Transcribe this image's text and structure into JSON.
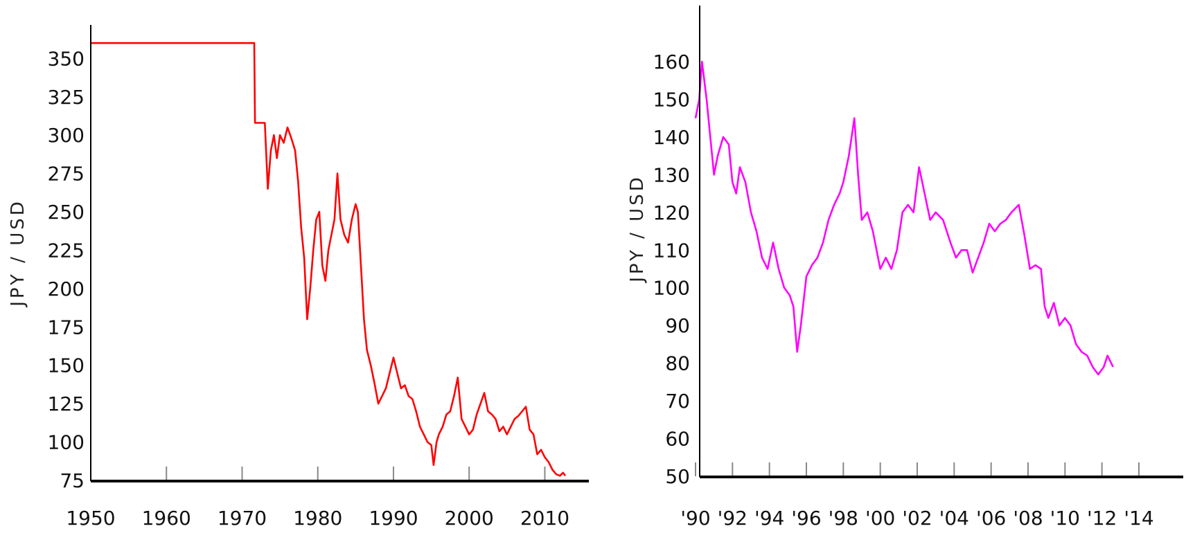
{
  "chart_data": [
    {
      "type": "line",
      "ylabel": "JPY / USD",
      "xlim": [
        1950,
        2016
      ],
      "ylim": [
        75,
        370
      ],
      "x_ticks": [
        1950,
        1960,
        1970,
        1980,
        1990,
        2000,
        2010
      ],
      "x_tick_labels": [
        "1950",
        "1960",
        "1970",
        "1980",
        "1990",
        "2000",
        "2010"
      ],
      "y_ticks": [
        75,
        100,
        125,
        150,
        175,
        200,
        225,
        250,
        275,
        300,
        325,
        350
      ],
      "y_tick_labels": [
        "75",
        "100",
        "125",
        "150",
        "175",
        "200",
        "225",
        "250",
        "275",
        "300",
        "325",
        "350"
      ],
      "color": "#ff0000",
      "series": [
        {
          "values": [
            [
              1950,
              360
            ],
            [
              1971.6,
              360
            ],
            [
              1971.7,
              308
            ],
            [
              1973.0,
              308
            ],
            [
              1973.4,
              265
            ],
            [
              1973.8,
              290
            ],
            [
              1974.2,
              300
            ],
            [
              1974.6,
              285
            ],
            [
              1975.0,
              300
            ],
            [
              1975.5,
              295
            ],
            [
              1976.0,
              305
            ],
            [
              1976.5,
              298
            ],
            [
              1977.0,
              290
            ],
            [
              1977.4,
              270
            ],
            [
              1977.8,
              240
            ],
            [
              1978.2,
              220
            ],
            [
              1978.6,
              180
            ],
            [
              1979.0,
              200
            ],
            [
              1979.4,
              225
            ],
            [
              1979.8,
              245
            ],
            [
              1980.2,
              250
            ],
            [
              1980.6,
              215
            ],
            [
              1981.0,
              205
            ],
            [
              1981.4,
              225
            ],
            [
              1981.8,
              235
            ],
            [
              1982.2,
              245
            ],
            [
              1982.6,
              275
            ],
            [
              1983.0,
              245
            ],
            [
              1983.5,
              235
            ],
            [
              1984.0,
              230
            ],
            [
              1984.5,
              245
            ],
            [
              1985.0,
              255
            ],
            [
              1985.3,
              250
            ],
            [
              1985.7,
              215
            ],
            [
              1986.1,
              180
            ],
            [
              1986.5,
              160
            ],
            [
              1987.0,
              150
            ],
            [
              1987.5,
              138
            ],
            [
              1988.0,
              125
            ],
            [
              1988.5,
              130
            ],
            [
              1989.0,
              135
            ],
            [
              1989.5,
              145
            ],
            [
              1990.0,
              155
            ],
            [
              1990.5,
              145
            ],
            [
              1991.0,
              135
            ],
            [
              1991.5,
              137
            ],
            [
              1992.0,
              130
            ],
            [
              1992.5,
              128
            ],
            [
              1993.0,
              120
            ],
            [
              1993.5,
              110
            ],
            [
              1994.0,
              105
            ],
            [
              1994.5,
              100
            ],
            [
              1995.0,
              98
            ],
            [
              1995.3,
              85
            ],
            [
              1995.7,
              100
            ],
            [
              1996.0,
              105
            ],
            [
              1996.5,
              110
            ],
            [
              1997.0,
              118
            ],
            [
              1997.5,
              120
            ],
            [
              1998.0,
              130
            ],
            [
              1998.5,
              142
            ],
            [
              1999.0,
              115
            ],
            [
              1999.5,
              110
            ],
            [
              2000.0,
              105
            ],
            [
              2000.5,
              108
            ],
            [
              2001.0,
              118
            ],
            [
              2001.5,
              125
            ],
            [
              2002.0,
              132
            ],
            [
              2002.5,
              120
            ],
            [
              2003.0,
              118
            ],
            [
              2003.5,
              115
            ],
            [
              2004.0,
              107
            ],
            [
              2004.5,
              110
            ],
            [
              2005.0,
              105
            ],
            [
              2005.5,
              110
            ],
            [
              2006.0,
              115
            ],
            [
              2006.5,
              117
            ],
            [
              2007.0,
              120
            ],
            [
              2007.5,
              123
            ],
            [
              2008.0,
              108
            ],
            [
              2008.5,
              105
            ],
            [
              2009.0,
              92
            ],
            [
              2009.5,
              95
            ],
            [
              2010.0,
              90
            ],
            [
              2010.5,
              87
            ],
            [
              2011.0,
              82
            ],
            [
              2011.5,
              79
            ],
            [
              2012.0,
              78
            ],
            [
              2012.4,
              80
            ],
            [
              2012.7,
              78
            ]
          ]
        }
      ]
    },
    {
      "type": "line",
      "ylabel": "JPY / USD",
      "xlim": [
        1990,
        2016.7
      ],
      "ylim": [
        50,
        169
      ],
      "x_ticks": [
        1990,
        1992,
        1994,
        1996,
        1998,
        2000,
        2002,
        2004,
        2006,
        2008,
        2010,
        2012,
        2014
      ],
      "x_tick_labels": [
        "'90",
        "'92",
        "'94",
        "'96",
        "'98",
        "'00",
        "'02",
        "'04",
        "'06",
        "'08",
        "'10",
        "'12",
        "'14"
      ],
      "y_ticks": [
        50,
        60,
        70,
        80,
        90,
        100,
        110,
        120,
        130,
        140,
        150,
        160
      ],
      "y_tick_labels": [
        "50",
        "60",
        "70",
        "80",
        "90",
        "100",
        "110",
        "120",
        "130",
        "140",
        "150",
        "160"
      ],
      "color": "#ff00ff",
      "series": [
        {
          "values": [
            [
              1990.0,
              145
            ],
            [
              1990.2,
              150
            ],
            [
              1990.35,
              160
            ],
            [
              1990.6,
              150
            ],
            [
              1990.8,
              140
            ],
            [
              1991.0,
              130
            ],
            [
              1991.2,
              135
            ],
            [
              1991.5,
              140
            ],
            [
              1991.8,
              138
            ],
            [
              1992.0,
              128
            ],
            [
              1992.2,
              125
            ],
            [
              1992.4,
              132
            ],
            [
              1992.7,
              128
            ],
            [
              1993.0,
              120
            ],
            [
              1993.3,
              115
            ],
            [
              1993.6,
              108
            ],
            [
              1993.9,
              105
            ],
            [
              1994.2,
              112
            ],
            [
              1994.5,
              105
            ],
            [
              1994.8,
              100
            ],
            [
              1995.1,
              98
            ],
            [
              1995.3,
              95
            ],
            [
              1995.5,
              83
            ],
            [
              1995.7,
              90
            ],
            [
              1996.0,
              103
            ],
            [
              1996.3,
              106
            ],
            [
              1996.6,
              108
            ],
            [
              1996.9,
              112
            ],
            [
              1997.2,
              118
            ],
            [
              1997.5,
              122
            ],
            [
              1997.8,
              125
            ],
            [
              1998.0,
              128
            ],
            [
              1998.3,
              135
            ],
            [
              1998.6,
              145
            ],
            [
              1998.8,
              130
            ],
            [
              1999.0,
              118
            ],
            [
              1999.3,
              120
            ],
            [
              1999.6,
              115
            ],
            [
              2000.0,
              105
            ],
            [
              2000.3,
              108
            ],
            [
              2000.6,
              105
            ],
            [
              2000.9,
              110
            ],
            [
              2001.2,
              120
            ],
            [
              2001.5,
              122
            ],
            [
              2001.8,
              120
            ],
            [
              2002.1,
              132
            ],
            [
              2002.4,
              125
            ],
            [
              2002.7,
              118
            ],
            [
              2003.0,
              120
            ],
            [
              2003.4,
              118
            ],
            [
              2003.8,
              112
            ],
            [
              2004.1,
              108
            ],
            [
              2004.4,
              110
            ],
            [
              2004.7,
              110
            ],
            [
              2005.0,
              104
            ],
            [
              2005.3,
              108
            ],
            [
              2005.6,
              112
            ],
            [
              2005.9,
              117
            ],
            [
              2006.2,
              115
            ],
            [
              2006.5,
              117
            ],
            [
              2006.8,
              118
            ],
            [
              2007.1,
              120
            ],
            [
              2007.5,
              122
            ],
            [
              2007.8,
              114
            ],
            [
              2008.1,
              105
            ],
            [
              2008.4,
              106
            ],
            [
              2008.7,
              105
            ],
            [
              2008.9,
              95
            ],
            [
              2009.1,
              92
            ],
            [
              2009.4,
              96
            ],
            [
              2009.7,
              90
            ],
            [
              2010.0,
              92
            ],
            [
              2010.3,
              90
            ],
            [
              2010.6,
              85
            ],
            [
              2010.9,
              83
            ],
            [
              2011.2,
              82
            ],
            [
              2011.5,
              79
            ],
            [
              2011.8,
              77
            ],
            [
              2012.1,
              79
            ],
            [
              2012.3,
              82
            ],
            [
              2012.6,
              79
            ]
          ]
        }
      ]
    }
  ]
}
